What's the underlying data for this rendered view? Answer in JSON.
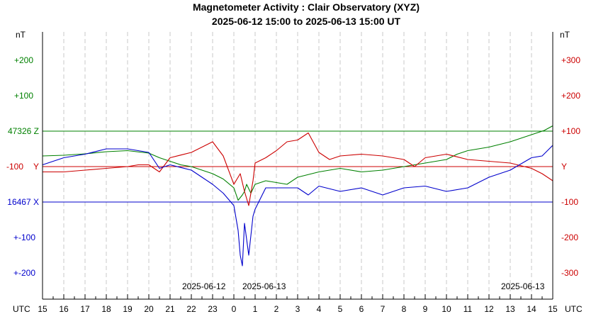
{
  "chart_data": {
    "type": "line",
    "title": "Magnetometer Activity : Clair Observatory (XYZ)",
    "subtitle": "2025-06-12 15:00 to 2025-06-13 15:00 UT",
    "unit_label_left": "nT",
    "unit_label_right": "nT",
    "x_axis_label": "UTC",
    "x_ticks": [
      "15",
      "16",
      "17",
      "18",
      "19",
      "20",
      "21",
      "22",
      "23",
      "0",
      "1",
      "2",
      "3",
      "4",
      "5",
      "6",
      "7",
      "8",
      "9",
      "10",
      "11",
      "12",
      "13",
      "14",
      "15"
    ],
    "date_labels": [
      "2025-06-12",
      "2025-06-13",
      "2025-06-13"
    ],
    "left_ticks": [
      "+200",
      "+100",
      "47326 Z",
      "-100",
      "Y",
      "16467 X",
      "+-100",
      "+-200"
    ],
    "right_ticks": [
      "+300",
      "+200",
      "+100",
      "Y",
      "-100",
      "-200",
      "-300"
    ],
    "grid": true,
    "baselines": [
      {
        "name": "Z",
        "label": "47326 Z",
        "value": 47326,
        "color": "#008000"
      },
      {
        "name": "Y",
        "label": "Y",
        "value": 0,
        "color": "#cc0000"
      },
      {
        "name": "X",
        "label": "16467 X",
        "value": 16467,
        "color": "#0000cc"
      }
    ],
    "series": [
      {
        "name": "Z",
        "color": "#008000",
        "unit_scale": "left",
        "x_hours": [
          0,
          1,
          2,
          3,
          4,
          5,
          5.5,
          6,
          6.5,
          7,
          7.5,
          8,
          8.5,
          9,
          9.2,
          9.4,
          9.5,
          9.6,
          9.8,
          10,
          10.5,
          11,
          11.5,
          12,
          13,
          14,
          15,
          16,
          17,
          18,
          19,
          19.5,
          20,
          21,
          22,
          23,
          23.6,
          24
        ],
        "values": [
          30,
          32,
          36,
          42,
          45,
          38,
          25,
          15,
          5,
          0,
          -10,
          -20,
          -35,
          -60,
          -95,
          -80,
          -70,
          -50,
          -75,
          -50,
          -40,
          -45,
          -50,
          -30,
          -15,
          -5,
          -15,
          -10,
          0,
          10,
          20,
          35,
          45,
          55,
          70,
          90,
          102,
          115
        ]
      },
      {
        "name": "Y",
        "color": "#cc0000",
        "unit_scale": "right",
        "x_hours": [
          0,
          1,
          2,
          3,
          4,
          4.5,
          5,
          5.5,
          6,
          7,
          8,
          8.5,
          9,
          9.3,
          9.5,
          9.7,
          9.9,
          10,
          10.5,
          11,
          11.5,
          12,
          12.5,
          13,
          13.5,
          14,
          15,
          16,
          17,
          17.5,
          18,
          19,
          20,
          21,
          22,
          23,
          23.5,
          24
        ],
        "values": [
          -15,
          -15,
          -10,
          -5,
          0,
          5,
          5,
          -15,
          25,
          40,
          70,
          30,
          -50,
          -20,
          -70,
          -110,
          -40,
          10,
          25,
          45,
          70,
          75,
          95,
          40,
          20,
          30,
          35,
          30,
          20,
          0,
          25,
          35,
          20,
          15,
          10,
          -5,
          -20,
          -40
        ]
      },
      {
        "name": "X",
        "color": "#0000cc",
        "unit_scale": "right",
        "x_hours": [
          0,
          1,
          2,
          3,
          4,
          5,
          5.5,
          6,
          7,
          7.5,
          8,
          8.5,
          9,
          9.2,
          9.3,
          9.4,
          9.5,
          9.7,
          9.9,
          10,
          10.5,
          11,
          12,
          12.5,
          13,
          14,
          15,
          16,
          17,
          18,
          19,
          20,
          21,
          22,
          23,
          23.5,
          24
        ],
        "values": [
          5,
          25,
          35,
          50,
          50,
          40,
          -5,
          5,
          -10,
          -30,
          -50,
          -75,
          -110,
          -180,
          -250,
          -280,
          -160,
          -250,
          -140,
          -120,
          -60,
          -60,
          -60,
          -80,
          -55,
          -70,
          -60,
          -80,
          -60,
          -55,
          -70,
          -60,
          -30,
          -10,
          25,
          30,
          60
        ]
      }
    ]
  }
}
